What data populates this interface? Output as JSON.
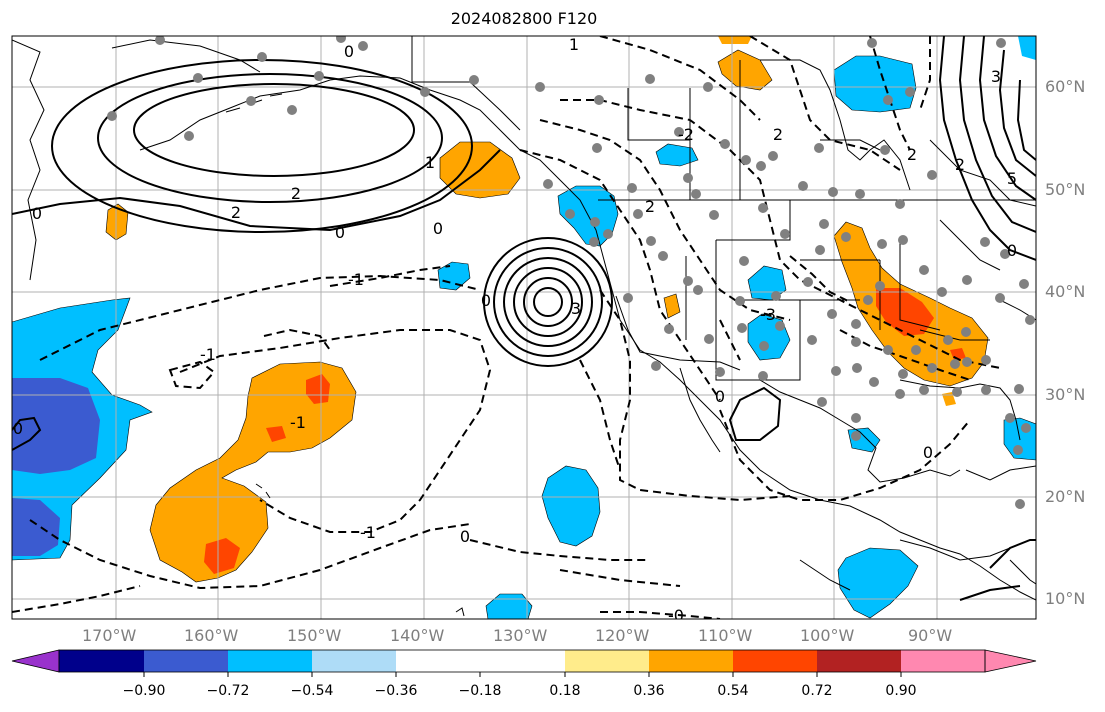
{
  "title": "2024082800 F120",
  "lat_labels": [
    "60°N",
    "50°N",
    "40°N",
    "30°N",
    "20°N",
    "10°N"
  ],
  "lon_labels": [
    "170°W",
    "160°W",
    "150°W",
    "140°W",
    "130°W",
    "120°W",
    "110°W",
    "100°W",
    "90°W"
  ],
  "colorbar": {
    "ticks": [
      "−0.90",
      "−0.72",
      "−0.54",
      "−0.36",
      "−0.18",
      "0.18",
      "0.36",
      "0.54",
      "0.72",
      "0.90"
    ],
    "colors": [
      "#9932cc",
      "#00008b",
      "#3b5bd0",
      "#00bfff",
      "#aedcf7",
      "#ffffff",
      "#ffec8b",
      "#ffa500",
      "#ff4500",
      "#b22222",
      "#ff88b0"
    ]
  },
  "contour_labels": [
    "0",
    "1",
    "2",
    "0",
    "2",
    "0",
    "0",
    "-1",
    "-1",
    "-1",
    "-1",
    "0",
    "0",
    "-0",
    "3",
    "0",
    "0",
    "2",
    "-2",
    "2",
    "2",
    "3",
    "5",
    "1",
    "2",
    "0",
    "0",
    "-3"
  ],
  "colors": {
    "land_line": "#000000",
    "grid": "#b0b0b0",
    "dots": "#808080"
  }
}
